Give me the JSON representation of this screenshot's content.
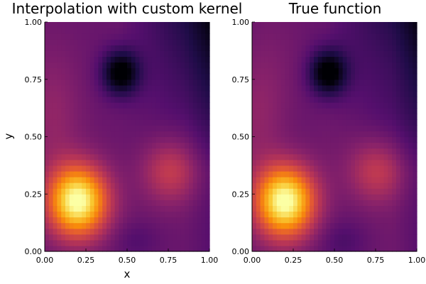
{
  "chart_data": [
    {
      "type": "heatmap",
      "title": "Interpolation with custom kernel",
      "xlabel": "x",
      "ylabel": "y",
      "xlim": [
        0,
        1
      ],
      "ylim": [
        0,
        1
      ],
      "xticks": [
        "0.00",
        "0.25",
        "0.50",
        "0.75",
        "1.00"
      ],
      "yticks": [
        "0.00",
        "0.25",
        "0.50",
        "0.75",
        "1.00"
      ],
      "colormap": "inferno",
      "grid_resolution": 40,
      "features": [
        {
          "kind": "maximum",
          "x": 0.2,
          "y": 0.22
        },
        {
          "kind": "local-maximum",
          "x": 0.75,
          "y": 0.35
        },
        {
          "kind": "minimum",
          "x": 0.45,
          "y": 0.78
        }
      ]
    },
    {
      "type": "heatmap",
      "title": "True function",
      "xlabel": "",
      "ylabel": "",
      "xlim": [
        0,
        1
      ],
      "ylim": [
        0,
        1
      ],
      "xticks": [
        "0.00",
        "0.25",
        "0.50",
        "0.75",
        "1.00"
      ],
      "yticks": [
        "0.00",
        "0.25",
        "0.50",
        "0.75",
        "1.00"
      ],
      "colormap": "inferno",
      "grid_resolution": 40,
      "features": [
        {
          "kind": "maximum",
          "x": 0.2,
          "y": 0.22
        },
        {
          "kind": "local-maximum",
          "x": 0.75,
          "y": 0.35
        },
        {
          "kind": "minimum",
          "x": 0.45,
          "y": 0.78
        }
      ]
    }
  ]
}
